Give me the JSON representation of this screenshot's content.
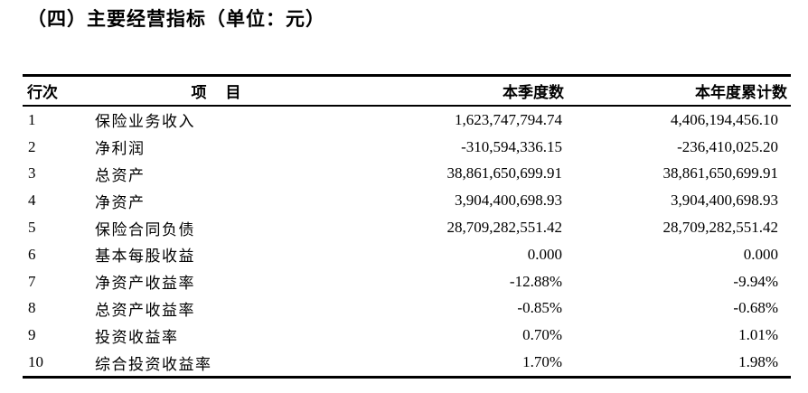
{
  "page": {
    "title": "（四）主要经营指标（单位：元）"
  },
  "table": {
    "headers": {
      "row_no": "行次",
      "item": "项　目",
      "quarter": "本季度数",
      "ytd": "本年度累计数"
    },
    "rows": [
      {
        "no": "1",
        "item": "保险业务收入",
        "quarter": "1,623,747,794.74",
        "ytd": "4,406,194,456.10"
      },
      {
        "no": "2",
        "item": "净利润",
        "quarter": "-310,594,336.15",
        "ytd": "-236,410,025.20"
      },
      {
        "no": "3",
        "item": "总资产",
        "quarter": "38,861,650,699.91",
        "ytd": "38,861,650,699.91"
      },
      {
        "no": "4",
        "item": "净资产",
        "quarter": "3,904,400,698.93",
        "ytd": "3,904,400,698.93"
      },
      {
        "no": "5",
        "item": "保险合同负债",
        "quarter": "28,709,282,551.42",
        "ytd": "28,709,282,551.42"
      },
      {
        "no": "6",
        "item": "基本每股收益",
        "quarter": "0.000",
        "ytd": "0.000"
      },
      {
        "no": "7",
        "item": "净资产收益率",
        "quarter": "-12.88%",
        "ytd": "-9.94%"
      },
      {
        "no": "8",
        "item": "总资产收益率",
        "quarter": "-0.85%",
        "ytd": "-0.68%"
      },
      {
        "no": "9",
        "item": "投资收益率",
        "quarter": "0.70%",
        "ytd": "1.01%"
      },
      {
        "no": "10",
        "item": "综合投资收益率",
        "quarter": "1.70%",
        "ytd": "1.98%"
      }
    ]
  }
}
